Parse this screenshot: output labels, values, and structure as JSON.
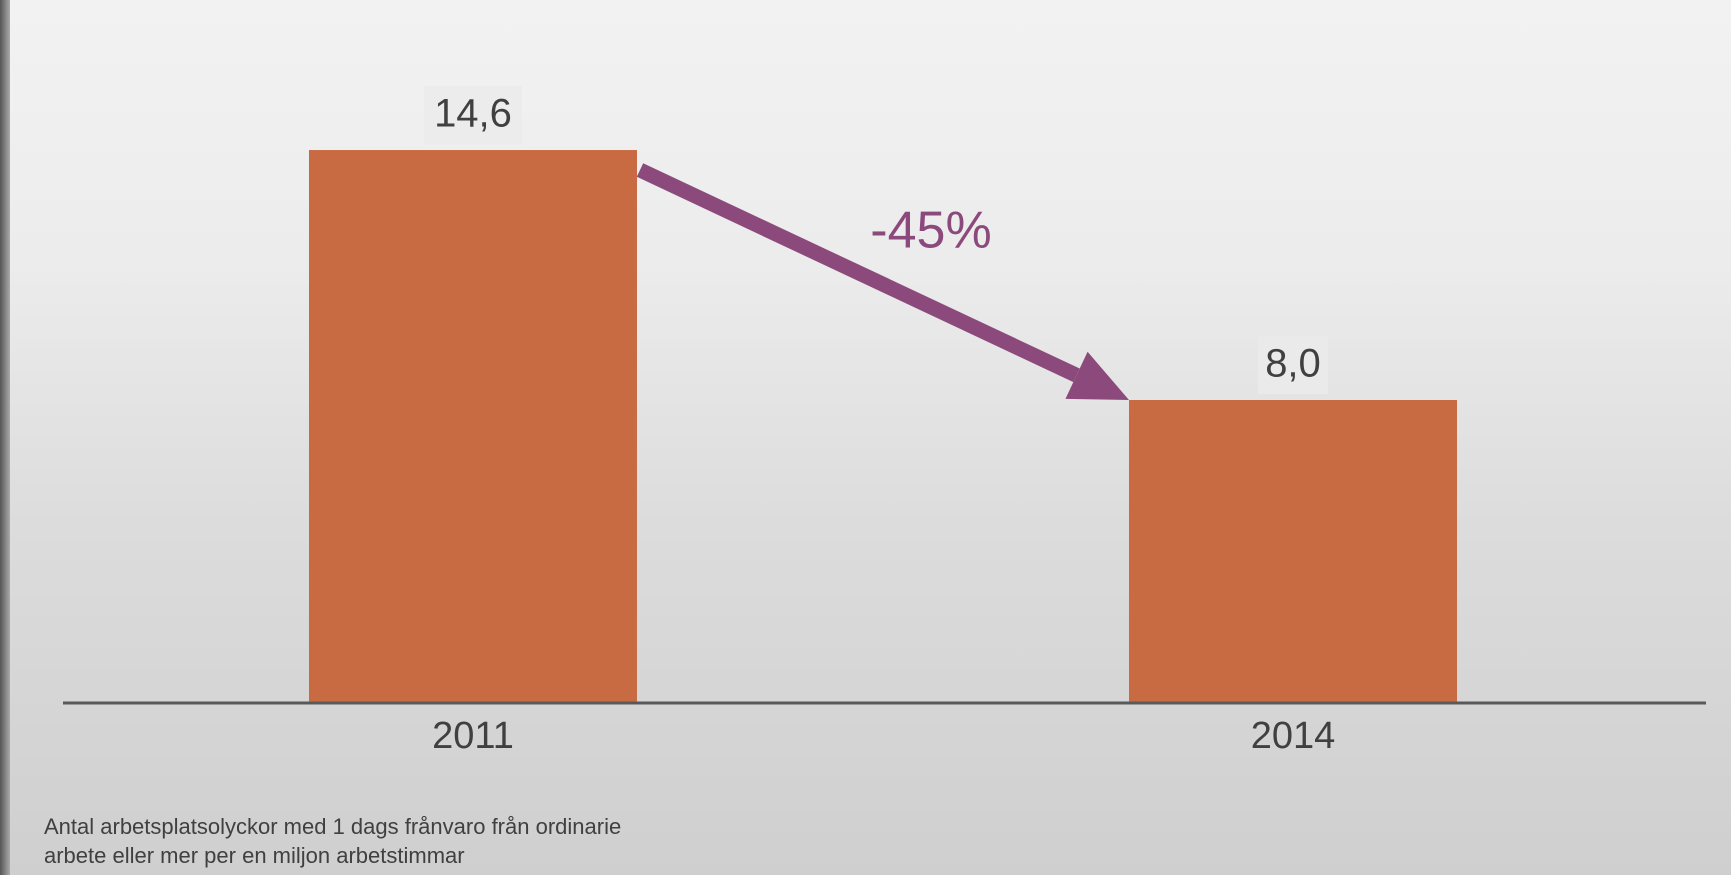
{
  "chart_data": {
    "type": "bar",
    "categories": [
      "2011",
      "2014"
    ],
    "values": [
      14.6,
      8.0
    ],
    "value_labels": [
      "14,6",
      "8,0"
    ],
    "color": "#c86b42",
    "ylim": [
      0,
      16
    ],
    "annotation": "-45%",
    "annotation_color": "#8b4a7b",
    "note": "Antal arbetsplatsolyckor med 1 dags frånvaro från ordinarie arbete eller mer per en miljon arbetstimmar"
  }
}
